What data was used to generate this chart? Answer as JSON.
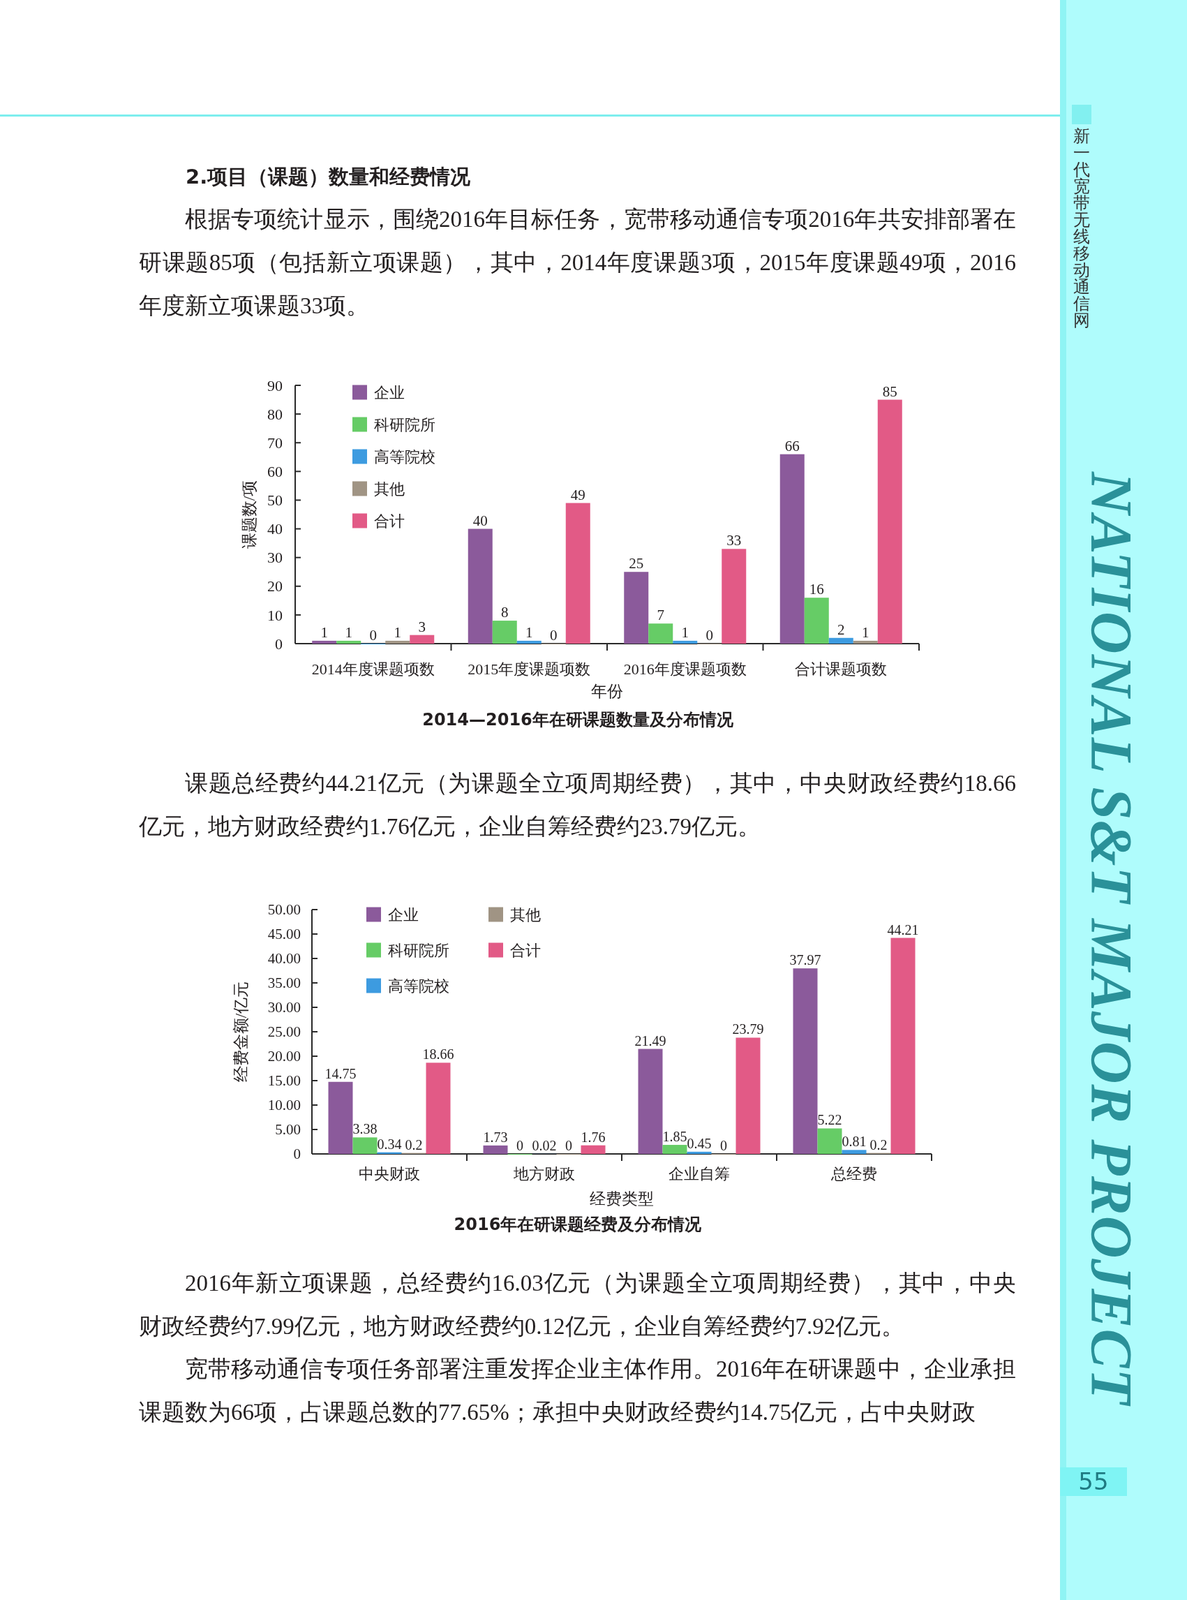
{
  "chart_data": [
    {
      "type": "bar",
      "title": "2014—2016年在研课题数量及分布情况",
      "xlabel": "年份",
      "ylabel": "课题数/项",
      "categories": [
        "2014年度课题项数",
        "2015年度课题项数",
        "2016年度课题项数",
        "合计课题项数"
      ],
      "series": [
        {
          "name": "企业",
          "color": "#8b5a9b",
          "values": [
            1,
            40,
            25,
            66
          ]
        },
        {
          "name": "科研院所",
          "color": "#66cc66",
          "values": [
            1,
            8,
            7,
            16
          ]
        },
        {
          "name": "高等院校",
          "color": "#3d9be0",
          "values": [
            0,
            1,
            1,
            2
          ]
        },
        {
          "name": "其他",
          "color": "#a09484",
          "values": [
            1,
            0,
            0,
            1
          ]
        },
        {
          "name": "合计",
          "color": "#e25a86",
          "values": [
            3,
            49,
            33,
            85
          ]
        }
      ],
      "ylim": [
        0,
        90
      ],
      "yticks": [
        0,
        10,
        20,
        30,
        40,
        50,
        60,
        70,
        80,
        90
      ],
      "data_labels": true,
      "legend": "top left",
      "annotations": [
        "2.项目（课题）数量和经费情况",
        "根据专项统计显示，围绕2016年目标任务，宽带移动通信专项2016年共安排部署在研课题85项（包括新立项课题），其中，2014年度课题3项，2015年度课题49项，2016年度新立项课题33项。",
        "新一代宽带无线移动通信网",
        "NATIONAL S&T MAJOR PROJECT",
        "55"
      ]
    },
    {
      "type": "bar",
      "title": "2016年在研课题经费及分布情况",
      "xlabel": "经费类型",
      "ylabel": "经费金额/亿元",
      "categories": [
        "中央财政",
        "地方财政",
        "企业自筹",
        "总经费"
      ],
      "series": [
        {
          "name": "企业",
          "color": "#8b5a9b",
          "values": [
            14.75,
            1.73,
            21.49,
            37.97
          ]
        },
        {
          "name": "科研院所",
          "color": "#66cc66",
          "values": [
            3.38,
            0,
            1.85,
            5.22
          ]
        },
        {
          "name": "高等院校",
          "color": "#3d9be0",
          "values": [
            0.34,
            0.02,
            0.45,
            0.81
          ]
        },
        {
          "name": "其他",
          "color": "#a09484",
          "values": [
            0.2,
            0,
            0,
            0.2
          ]
        },
        {
          "name": "合计",
          "color": "#e25a86",
          "values": [
            18.66,
            1.76,
            23.79,
            44.21
          ]
        }
      ],
      "ylim": [
        0,
        50
      ],
      "yticks": [
        0,
        {
          "value": 5,
          "label": "5.00"
        },
        {
          "value": 10,
          "label": "10.00"
        },
        {
          "value": 15,
          "label": "15.00"
        },
        {
          "value": 20,
          "label": "20.00"
        },
        {
          "value": 25,
          "label": "25.00"
        },
        {
          "value": 30,
          "label": "30.00"
        },
        {
          "value": 35,
          "label": "35.00"
        },
        {
          "value": 40,
          "label": "40.00"
        },
        {
          "value": 45,
          "label": "45.00"
        },
        {
          "value": 50,
          "label": "50.00"
        }
      ],
      "data_labels": true,
      "legend": "top left",
      "annotations": [
        "课题总经费约44.21亿元（为课题全立项周期经费），其中，中央财政经费约18.66亿元，地方财政经费约1.76亿元，企业自筹经费约23.79亿元。",
        "2016年新立项课题，总经费约16.03亿元（为课题全立项周期经费），其中，中央财政经费约7.99亿元，地方财政经费约0.12亿元，企业自筹经费约7.92亿元。",
        "宽带移动通信专项任务部署注重发挥企业主体作用。2016年在研课题中，企业承担课题数为66项，占课题总数的77.65%；承担中央财政经费约14.75亿元，占中央财政"
      ]
    }
  ]
}
